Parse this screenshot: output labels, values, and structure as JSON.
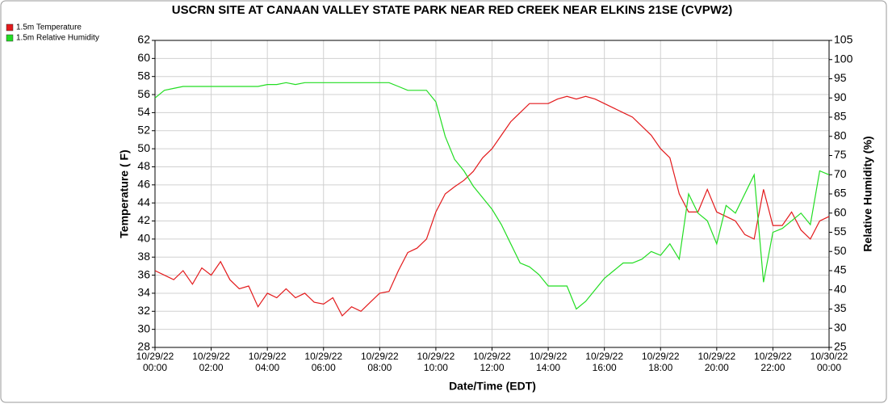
{
  "chart_data": {
    "type": "line",
    "title": "USCRN SITE AT CANAAN VALLEY STATE PARK NEAR RED CREEK NEAR ELKINS 21SE (CVPW2)",
    "x_label": "Date/Time (EDT)",
    "y_label": "Temperature ( F)",
    "y2_label": "Relative Humidity (%)",
    "x": [
      "10/29/22 00:00",
      "10/29/22 00:20",
      "10/29/22 00:40",
      "10/29/22 01:00",
      "10/29/22 01:20",
      "10/29/22 01:40",
      "10/29/22 02:00",
      "10/29/22 02:20",
      "10/29/22 02:40",
      "10/29/22 03:00",
      "10/29/22 03:20",
      "10/29/22 03:40",
      "10/29/22 04:00",
      "10/29/22 04:20",
      "10/29/22 04:40",
      "10/29/22 05:00",
      "10/29/22 05:20",
      "10/29/22 05:40",
      "10/29/22 06:00",
      "10/29/22 06:20",
      "10/29/22 06:40",
      "10/29/22 07:00",
      "10/29/22 07:20",
      "10/29/22 07:40",
      "10/29/22 08:00",
      "10/29/22 08:20",
      "10/29/22 08:40",
      "10/29/22 09:00",
      "10/29/22 09:20",
      "10/29/22 09:40",
      "10/29/22 10:00",
      "10/29/22 10:20",
      "10/29/22 10:40",
      "10/29/22 11:00",
      "10/29/22 11:20",
      "10/29/22 11:40",
      "10/29/22 12:00",
      "10/29/22 12:20",
      "10/29/22 12:40",
      "10/29/22 13:00",
      "10/29/22 13:20",
      "10/29/22 13:40",
      "10/29/22 14:00",
      "10/29/22 14:20",
      "10/29/22 14:40",
      "10/29/22 15:00",
      "10/29/22 15:20",
      "10/29/22 15:40",
      "10/29/22 16:00",
      "10/29/22 16:20",
      "10/29/22 16:40",
      "10/29/22 17:00",
      "10/29/22 17:20",
      "10/29/22 17:40",
      "10/29/22 18:00",
      "10/29/22 18:20",
      "10/29/22 18:40",
      "10/29/22 19:00",
      "10/29/22 19:20",
      "10/29/22 19:40",
      "10/29/22 20:00",
      "10/29/22 20:20",
      "10/29/22 20:40",
      "10/29/22 21:00",
      "10/29/22 21:20",
      "10/29/22 21:40",
      "10/29/22 22:00",
      "10/29/22 22:20",
      "10/29/22 22:40",
      "10/29/22 23:00",
      "10/29/22 23:20",
      "10/29/22 23:40",
      "10/30/22 00:00"
    ],
    "series": [
      {
        "name": "1.5m Temperature",
        "color": "#e31a1c",
        "axis": "y",
        "values": [
          36.5,
          36,
          35.5,
          36.5,
          35,
          36.8,
          36,
          37.5,
          35.5,
          34.5,
          34.8,
          32.5,
          34,
          33.5,
          34.5,
          33.5,
          34,
          33,
          32.8,
          33.5,
          31.5,
          32.5,
          32,
          33,
          34,
          34.2,
          36.5,
          38.5,
          39,
          40,
          43,
          45,
          45.8,
          46.5,
          47.5,
          49,
          50,
          51.5,
          53,
          54,
          55,
          55,
          55,
          55.5,
          55.8,
          55.5,
          55.8,
          55.5,
          55,
          54.5,
          54,
          53.5,
          52.5,
          51.5,
          50,
          49,
          45,
          43,
          43,
          45.5,
          43,
          42.5,
          42,
          40.5,
          40,
          45.5,
          41.5,
          41.5,
          43,
          41,
          40,
          42,
          42.5
        ]
      },
      {
        "name": "1.5m Relative Humidity",
        "color": "#22dd22",
        "axis": "y2",
        "values": [
          90,
          92,
          92.5,
          93,
          93,
          93,
          93,
          93,
          93,
          93,
          93,
          93,
          93.5,
          93.5,
          94,
          93.5,
          94,
          94,
          94,
          94,
          94,
          94,
          94,
          94,
          94,
          94,
          93,
          92,
          92,
          92,
          89,
          80,
          74,
          71,
          67,
          64,
          61,
          57,
          52,
          47,
          46,
          44,
          41,
          41,
          41,
          35,
          37,
          40,
          43,
          45,
          47,
          47,
          48,
          50,
          49,
          52,
          48,
          65,
          60,
          58,
          52,
          62,
          60,
          65,
          70,
          42,
          55,
          56,
          58,
          60,
          57,
          71,
          70
        ]
      }
    ],
    "xlim": [
      "10/29/22 00:00",
      "10/30/22 00:00"
    ],
    "xticks": [
      "10/29/22 00:00",
      "10/29/22 02:00",
      "10/29/22 04:00",
      "10/29/22 06:00",
      "10/29/22 08:00",
      "10/29/22 10:00",
      "10/29/22 12:00",
      "10/29/22 14:00",
      "10/29/22 16:00",
      "10/29/22 18:00",
      "10/29/22 20:00",
      "10/29/22 22:00",
      "10/30/22 00:00"
    ],
    "ylim": [
      28,
      62
    ],
    "yticks": [
      28,
      30,
      32,
      34,
      36,
      38,
      40,
      42,
      44,
      46,
      48,
      50,
      52,
      54,
      56,
      58,
      60,
      62
    ],
    "y2lim": [
      25,
      105
    ],
    "y2ticks": [
      25,
      30,
      35,
      40,
      45,
      50,
      55,
      60,
      65,
      70,
      75,
      80,
      85,
      90,
      95,
      100,
      105
    ],
    "grid": true
  }
}
